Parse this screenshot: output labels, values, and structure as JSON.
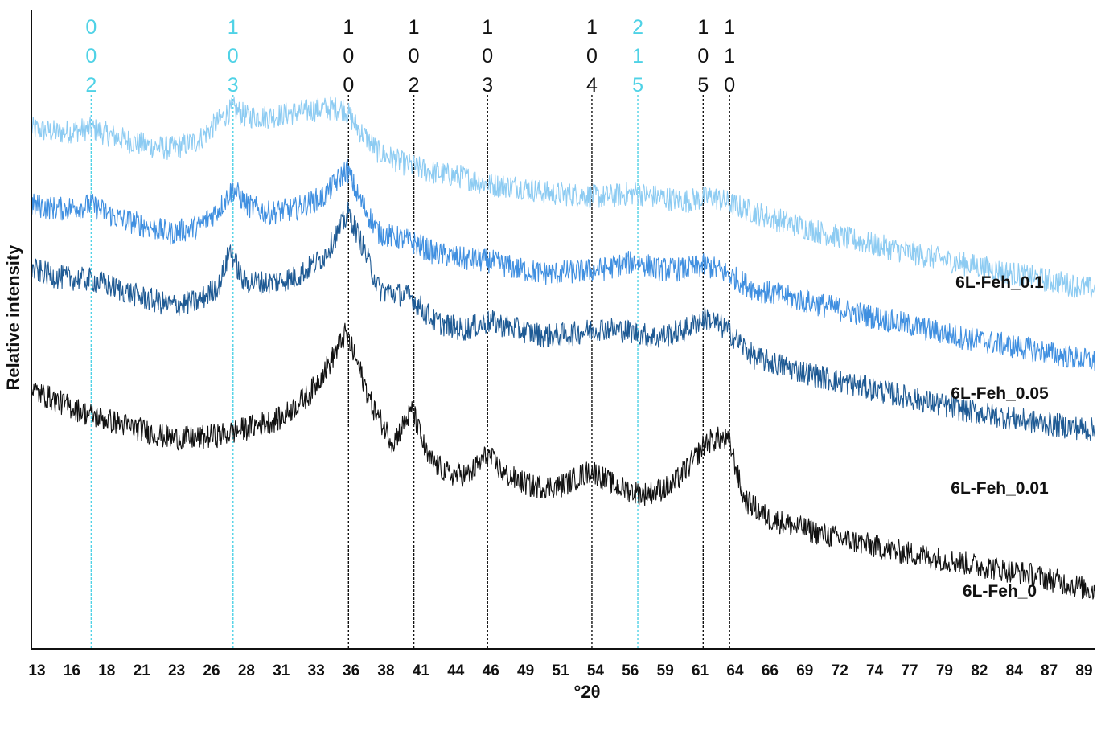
{
  "chart_data": {
    "type": "line",
    "xlabel": "°2θ",
    "ylabel": "Relative intensity",
    "xlim": [
      13,
      89.5
    ],
    "x_ticks": [
      "13",
      "16",
      "18",
      "21",
      "23",
      "26",
      "28",
      "31",
      "33",
      "36",
      "38",
      "41",
      "44",
      "46",
      "49",
      "51",
      "54",
      "56",
      "59",
      "61",
      "64",
      "66",
      "69",
      "72",
      "74",
      "77",
      "79",
      "82",
      "84",
      "87",
      "89"
    ],
    "grid": false,
    "legend": "labels at right end of each trace",
    "reflections": [
      {
        "hkl": [
          "0",
          "0",
          "2"
        ],
        "x": 17.3,
        "color": "#4fd2e6"
      },
      {
        "hkl": [
          "1",
          "0",
          "3"
        ],
        "x": 27.5,
        "color": "#4fd2e6"
      },
      {
        "hkl": [
          "1",
          "0",
          "0"
        ],
        "x": 35.8,
        "color": "#111111"
      },
      {
        "hkl": [
          "1",
          "0",
          "2"
        ],
        "x": 40.5,
        "color": "#111111"
      },
      {
        "hkl": [
          "1",
          "0",
          "3"
        ],
        "x": 45.8,
        "color": "#111111"
      },
      {
        "hkl": [
          "1",
          "0",
          "4"
        ],
        "x": 53.3,
        "color": "#111111"
      },
      {
        "hkl": [
          "2",
          "1",
          "5"
        ],
        "x": 56.6,
        "color": "#4fd2e6"
      },
      {
        "hkl": [
          "1",
          "0",
          "5"
        ],
        "x": 61.3,
        "color": "#111111"
      },
      {
        "hkl": [
          "1",
          "1",
          "0"
        ],
        "x": 63.2,
        "color": "#111111"
      }
    ],
    "series": [
      {
        "name": "6L-Feh_0.1",
        "color": "#8ccbf2",
        "x": [
          13,
          15,
          17.3,
          19,
          21,
          23,
          25,
          26.5,
          27.5,
          28.5,
          30,
          32,
          34,
          35.5,
          36.5,
          38,
          40,
          42,
          44,
          46,
          48,
          50,
          52,
          54,
          56.5,
          58,
          60,
          62,
          63.5,
          66,
          70,
          75,
          80,
          85,
          89.5
        ],
        "y": [
          2.3,
          2.25,
          2.3,
          2.2,
          2.1,
          2.05,
          2.15,
          2.4,
          2.55,
          2.45,
          2.45,
          2.5,
          2.55,
          2.55,
          2.3,
          2.0,
          1.85,
          1.75,
          1.7,
          1.6,
          1.58,
          1.5,
          1.48,
          1.45,
          1.5,
          1.45,
          1.4,
          1.45,
          1.35,
          1.2,
          1.0,
          0.8,
          0.62,
          0.45,
          0.3
        ]
      },
      {
        "name": "6L-Feh_0.05",
        "color": "#3f8fe0",
        "x": [
          13,
          15,
          17.3,
          19,
          21,
          23,
          25,
          26.5,
          27.5,
          28.5,
          30,
          32,
          34,
          35,
          35.7,
          36.5,
          38,
          40.3,
          42,
          44,
          46,
          48,
          50,
          52,
          54,
          56.5,
          58,
          60,
          61.5,
          63,
          65,
          70,
          75,
          80,
          85,
          89.5
        ],
        "y": [
          1.35,
          1.3,
          1.35,
          1.2,
          1.1,
          1.0,
          1.08,
          1.3,
          1.55,
          1.35,
          1.25,
          1.3,
          1.45,
          1.65,
          1.8,
          1.45,
          1.0,
          0.9,
          0.75,
          0.68,
          0.65,
          0.55,
          0.5,
          0.52,
          0.55,
          0.65,
          0.55,
          0.55,
          0.6,
          0.5,
          0.3,
          0.1,
          -0.1,
          -0.3,
          -0.45,
          -0.6
        ]
      },
      {
        "name": "6L-Feh_0.01",
        "color": "#1e5a94",
        "x": [
          13,
          15,
          17.3,
          19,
          21,
          23,
          25,
          26.5,
          27.3,
          28.2,
          30,
          32,
          34,
          35,
          35.8,
          36.8,
          38,
          40.3,
          42,
          44,
          46,
          48,
          50,
          52,
          54,
          56,
          58,
          60,
          61.5,
          63,
          65,
          70,
          75,
          80,
          85,
          89.5
        ],
        "y": [
          0.55,
          0.45,
          0.42,
          0.32,
          0.2,
          0.1,
          0.15,
          0.35,
          0.8,
          0.4,
          0.38,
          0.45,
          0.7,
          1.0,
          1.25,
          0.85,
          0.3,
          0.2,
          -0.1,
          -0.2,
          -0.1,
          -0.2,
          -0.28,
          -0.25,
          -0.18,
          -0.22,
          -0.3,
          -0.2,
          -0.05,
          -0.2,
          -0.55,
          -0.8,
          -1.0,
          -1.2,
          -1.35,
          -1.45
        ]
      },
      {
        "name": "6L-Feh_0",
        "color": "#111111",
        "x": [
          13,
          15,
          17,
          19,
          21,
          23,
          25,
          27,
          29,
          31,
          33,
          34.5,
          35.6,
          36.3,
          37.5,
          39,
          40.4,
          41.5,
          43,
          44.5,
          45.8,
          47,
          49,
          51,
          53.3,
          55,
          57,
          59,
          60.5,
          61.5,
          62.5,
          63.2,
          64.2,
          66,
          70,
          75,
          80,
          85,
          89.5
        ],
        "y": [
          -0.95,
          -1.1,
          -1.25,
          -1.35,
          -1.45,
          -1.55,
          -1.55,
          -1.5,
          -1.4,
          -1.3,
          -1.0,
          -0.6,
          -0.25,
          -0.55,
          -1.15,
          -1.6,
          -1.2,
          -1.8,
          -2.0,
          -2.0,
          -1.75,
          -2.0,
          -2.15,
          -2.15,
          -1.95,
          -2.15,
          -2.25,
          -2.15,
          -1.85,
          -1.6,
          -1.55,
          -1.6,
          -2.3,
          -2.55,
          -2.75,
          -2.95,
          -3.1,
          -3.25,
          -3.45
        ]
      }
    ]
  }
}
